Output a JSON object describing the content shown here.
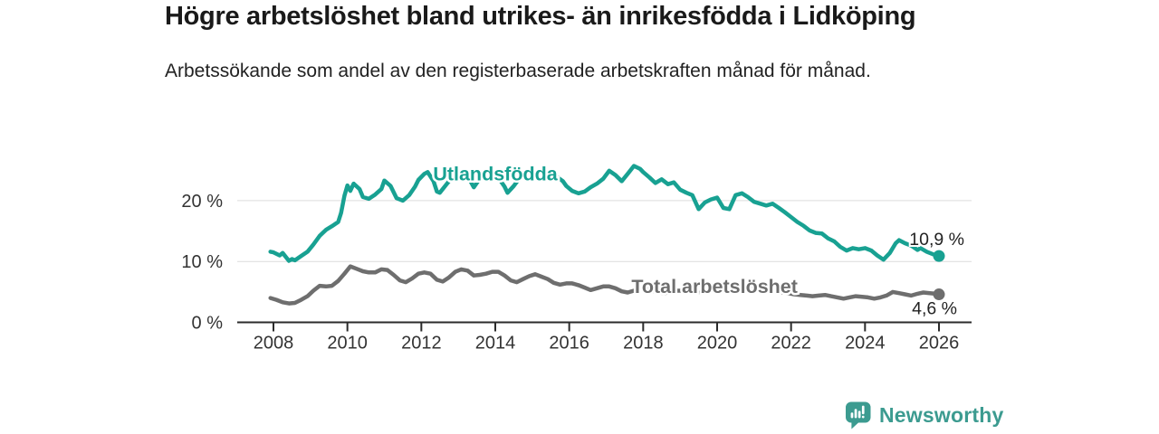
{
  "header": {
    "title": "Högre arbetslöshet bland utrikes- än inrikesfödda i Lidköping",
    "subtitle": "Arbetssökande som andel av den registerbaserade arbetskraften månad för månad."
  },
  "footer": {
    "brand": "Newsworthy",
    "logo_icon": "bar-chart-speech-bubble-icon"
  },
  "colors": {
    "foreign_born_line": "#18a192",
    "total_line": "#6e6e6e",
    "axis": "#2b2b2b",
    "grid": "#dcdcdc",
    "tick_text": "#333333",
    "value_text": "#222222",
    "brand_teal": "#3c9b90"
  },
  "chart_data": {
    "type": "line",
    "title": "Högre arbetslöshet bland utrikes- än inrikesfödda i Lidköping",
    "subtitle": "Arbetssökande som andel av den registerbaserade arbetskraften månad för månad.",
    "xlabel": "",
    "ylabel": "",
    "xlim": [
      2007.8,
      2026.9
    ],
    "ylim": [
      0,
      27
    ],
    "grid": "horizontal",
    "legend": "inline-labels",
    "x_ticks": [
      2008,
      2010,
      2012,
      2014,
      2016,
      2018,
      2020,
      2022,
      2024,
      2026
    ],
    "x_tick_labels": [
      "2008",
      "2010",
      "2012",
      "2014",
      "2016",
      "2018",
      "2020",
      "2022",
      "2024",
      "2026"
    ],
    "y_ticks": [
      0,
      10,
      20
    ],
    "y_tick_labels": [
      "0 %",
      "10 %",
      "20 %"
    ],
    "series": [
      {
        "name": "Total arbetslöshet",
        "color": "#6e6e6e",
        "end_label": "4,6 %",
        "end_value": 4.6,
        "label_x": 2019.93,
        "label_y": 5.9,
        "points": [
          [
            2007.92,
            4.0
          ],
          [
            2008.08,
            3.7
          ],
          [
            2008.25,
            3.3
          ],
          [
            2008.42,
            3.1
          ],
          [
            2008.58,
            3.2
          ],
          [
            2008.75,
            3.7
          ],
          [
            2008.92,
            4.3
          ],
          [
            2009.08,
            5.2
          ],
          [
            2009.25,
            6.0
          ],
          [
            2009.42,
            5.9
          ],
          [
            2009.58,
            6.0
          ],
          [
            2009.75,
            6.8
          ],
          [
            2009.92,
            8.0
          ],
          [
            2010.08,
            9.2
          ],
          [
            2010.25,
            8.8
          ],
          [
            2010.42,
            8.4
          ],
          [
            2010.58,
            8.2
          ],
          [
            2010.75,
            8.2
          ],
          [
            2010.92,
            8.7
          ],
          [
            2011.08,
            8.6
          ],
          [
            2011.25,
            7.8
          ],
          [
            2011.42,
            6.9
          ],
          [
            2011.58,
            6.6
          ],
          [
            2011.75,
            7.2
          ],
          [
            2011.92,
            8.0
          ],
          [
            2012.08,
            8.2
          ],
          [
            2012.25,
            8.0
          ],
          [
            2012.42,
            7.0
          ],
          [
            2012.58,
            6.7
          ],
          [
            2012.75,
            7.4
          ],
          [
            2012.92,
            8.3
          ],
          [
            2013.08,
            8.7
          ],
          [
            2013.25,
            8.5
          ],
          [
            2013.42,
            7.7
          ],
          [
            2013.58,
            7.8
          ],
          [
            2013.75,
            8.0
          ],
          [
            2013.92,
            8.3
          ],
          [
            2014.08,
            8.3
          ],
          [
            2014.25,
            7.7
          ],
          [
            2014.42,
            6.9
          ],
          [
            2014.58,
            6.6
          ],
          [
            2014.75,
            7.1
          ],
          [
            2014.92,
            7.6
          ],
          [
            2015.08,
            7.9
          ],
          [
            2015.25,
            7.5
          ],
          [
            2015.42,
            7.1
          ],
          [
            2015.58,
            6.5
          ],
          [
            2015.75,
            6.2
          ],
          [
            2015.92,
            6.4
          ],
          [
            2016.08,
            6.4
          ],
          [
            2016.25,
            6.1
          ],
          [
            2016.42,
            5.7
          ],
          [
            2016.58,
            5.3
          ],
          [
            2016.75,
            5.6
          ],
          [
            2016.92,
            5.9
          ],
          [
            2017.08,
            5.9
          ],
          [
            2017.25,
            5.6
          ],
          [
            2017.42,
            5.1
          ],
          [
            2017.58,
            4.9
          ],
          [
            2017.75,
            5.2
          ],
          [
            2017.92,
            5.5
          ],
          [
            2018.08,
            5.5
          ],
          [
            2018.25,
            5.2
          ],
          [
            2018.42,
            4.9
          ],
          [
            2018.58,
            4.8
          ],
          [
            2018.75,
            5.0
          ],
          [
            2018.92,
            5.2
          ],
          [
            2019.08,
            5.2
          ],
          [
            2019.25,
            5.0
          ],
          [
            2019.42,
            4.8
          ],
          [
            2019.58,
            4.9
          ],
          [
            2019.75,
            5.1
          ],
          [
            2019.92,
            5.4
          ],
          [
            2020.08,
            5.7
          ],
          [
            2020.25,
            6.2
          ],
          [
            2020.42,
            6.5
          ],
          [
            2020.58,
            6.4
          ],
          [
            2020.75,
            6.2
          ],
          [
            2020.92,
            6.0
          ],
          [
            2021.08,
            5.9
          ],
          [
            2021.25,
            5.6
          ],
          [
            2021.42,
            5.3
          ],
          [
            2021.58,
            5.1
          ],
          [
            2021.75,
            4.9
          ],
          [
            2021.92,
            4.8
          ],
          [
            2022.08,
            4.6
          ],
          [
            2022.25,
            4.5
          ],
          [
            2022.42,
            4.4
          ],
          [
            2022.58,
            4.3
          ],
          [
            2022.75,
            4.4
          ],
          [
            2022.92,
            4.5
          ],
          [
            2023.08,
            4.3
          ],
          [
            2023.25,
            4.1
          ],
          [
            2023.42,
            3.9
          ],
          [
            2023.58,
            4.1
          ],
          [
            2023.75,
            4.3
          ],
          [
            2023.92,
            4.2
          ],
          [
            2024.08,
            4.1
          ],
          [
            2024.25,
            3.9
          ],
          [
            2024.42,
            4.1
          ],
          [
            2024.58,
            4.4
          ],
          [
            2024.75,
            5.0
          ],
          [
            2024.92,
            4.8
          ],
          [
            2025.08,
            4.6
          ],
          [
            2025.25,
            4.4
          ],
          [
            2025.42,
            4.7
          ],
          [
            2025.58,
            4.9
          ],
          [
            2025.75,
            4.8
          ],
          [
            2025.92,
            4.7
          ],
          [
            2026.0,
            4.6
          ]
        ]
      },
      {
        "name": "Utlandsfödda",
        "color": "#18a192",
        "end_label": "10,9 %",
        "end_value": 10.9,
        "label_x": 2014.0,
        "label_y": 24.4,
        "points": [
          [
            2007.92,
            11.6
          ],
          [
            2008.0,
            11.5
          ],
          [
            2008.17,
            11.0
          ],
          [
            2008.25,
            11.4
          ],
          [
            2008.42,
            10.1
          ],
          [
            2008.5,
            10.4
          ],
          [
            2008.58,
            10.2
          ],
          [
            2008.75,
            10.9
          ],
          [
            2008.92,
            11.6
          ],
          [
            2009.08,
            12.8
          ],
          [
            2009.25,
            14.2
          ],
          [
            2009.42,
            15.2
          ],
          [
            2009.58,
            15.8
          ],
          [
            2009.75,
            16.5
          ],
          [
            2009.83,
            18.0
          ],
          [
            2009.92,
            20.8
          ],
          [
            2010.0,
            22.5
          ],
          [
            2010.08,
            21.6
          ],
          [
            2010.17,
            22.8
          ],
          [
            2010.33,
            21.9
          ],
          [
            2010.42,
            20.6
          ],
          [
            2010.58,
            20.3
          ],
          [
            2010.75,
            21.0
          ],
          [
            2010.92,
            21.9
          ],
          [
            2011.0,
            23.3
          ],
          [
            2011.17,
            22.4
          ],
          [
            2011.33,
            20.4
          ],
          [
            2011.5,
            20.0
          ],
          [
            2011.67,
            20.9
          ],
          [
            2011.83,
            22.3
          ],
          [
            2011.92,
            23.4
          ],
          [
            2012.08,
            24.4
          ],
          [
            2012.17,
            24.7
          ],
          [
            2012.33,
            23.2
          ],
          [
            2012.42,
            21.5
          ],
          [
            2012.5,
            21.3
          ],
          [
            2012.67,
            22.6
          ],
          [
            2012.83,
            23.8
          ],
          [
            2013.0,
            24.3
          ],
          [
            2013.17,
            24.5
          ],
          [
            2013.33,
            23.2
          ],
          [
            2013.42,
            22.2
          ],
          [
            2013.58,
            23.6
          ],
          [
            2013.75,
            24.2
          ],
          [
            2013.92,
            24.4
          ],
          [
            2014.08,
            23.8
          ],
          [
            2014.25,
            22.3
          ],
          [
            2014.33,
            21.3
          ],
          [
            2014.5,
            22.4
          ],
          [
            2014.67,
            23.8
          ],
          [
            2014.83,
            24.4
          ],
          [
            2015.0,
            24.6
          ],
          [
            2015.17,
            24.7
          ],
          [
            2015.33,
            24.8
          ],
          [
            2015.5,
            24.5
          ],
          [
            2015.67,
            23.9
          ],
          [
            2015.83,
            23.2
          ],
          [
            2015.92,
            22.4
          ],
          [
            2016.08,
            21.6
          ],
          [
            2016.25,
            21.2
          ],
          [
            2016.42,
            21.5
          ],
          [
            2016.58,
            22.2
          ],
          [
            2016.75,
            22.8
          ],
          [
            2016.92,
            23.6
          ],
          [
            2017.08,
            24.9
          ],
          [
            2017.25,
            24.2
          ],
          [
            2017.42,
            23.2
          ],
          [
            2017.58,
            24.4
          ],
          [
            2017.75,
            25.7
          ],
          [
            2017.92,
            25.2
          ],
          [
            2018.0,
            24.7
          ],
          [
            2018.17,
            23.8
          ],
          [
            2018.33,
            22.9
          ],
          [
            2018.5,
            23.5
          ],
          [
            2018.67,
            22.7
          ],
          [
            2018.83,
            23.0
          ],
          [
            2019.0,
            21.8
          ],
          [
            2019.17,
            21.3
          ],
          [
            2019.33,
            20.9
          ],
          [
            2019.5,
            18.6
          ],
          [
            2019.67,
            19.7
          ],
          [
            2019.83,
            20.2
          ],
          [
            2020.0,
            20.5
          ],
          [
            2020.17,
            18.8
          ],
          [
            2020.33,
            18.6
          ],
          [
            2020.5,
            20.9
          ],
          [
            2020.67,
            21.2
          ],
          [
            2020.83,
            20.6
          ],
          [
            2021.0,
            19.8
          ],
          [
            2021.17,
            19.5
          ],
          [
            2021.33,
            19.2
          ],
          [
            2021.5,
            19.5
          ],
          [
            2021.67,
            18.8
          ],
          [
            2021.83,
            18.1
          ],
          [
            2022.0,
            17.3
          ],
          [
            2022.17,
            16.5
          ],
          [
            2022.33,
            15.9
          ],
          [
            2022.5,
            15.1
          ],
          [
            2022.67,
            14.7
          ],
          [
            2022.83,
            14.6
          ],
          [
            2023.0,
            13.8
          ],
          [
            2023.17,
            13.3
          ],
          [
            2023.33,
            12.4
          ],
          [
            2023.5,
            11.8
          ],
          [
            2023.67,
            12.2
          ],
          [
            2023.83,
            12.0
          ],
          [
            2024.0,
            12.2
          ],
          [
            2024.17,
            11.8
          ],
          [
            2024.33,
            11.0
          ],
          [
            2024.5,
            10.3
          ],
          [
            2024.67,
            11.4
          ],
          [
            2024.83,
            13.0
          ],
          [
            2024.92,
            13.5
          ],
          [
            2025.08,
            13.0
          ],
          [
            2025.25,
            12.6
          ],
          [
            2025.42,
            11.9
          ],
          [
            2025.5,
            12.2
          ],
          [
            2025.67,
            11.6
          ],
          [
            2025.83,
            11.2
          ],
          [
            2026.0,
            10.9
          ]
        ]
      }
    ]
  }
}
